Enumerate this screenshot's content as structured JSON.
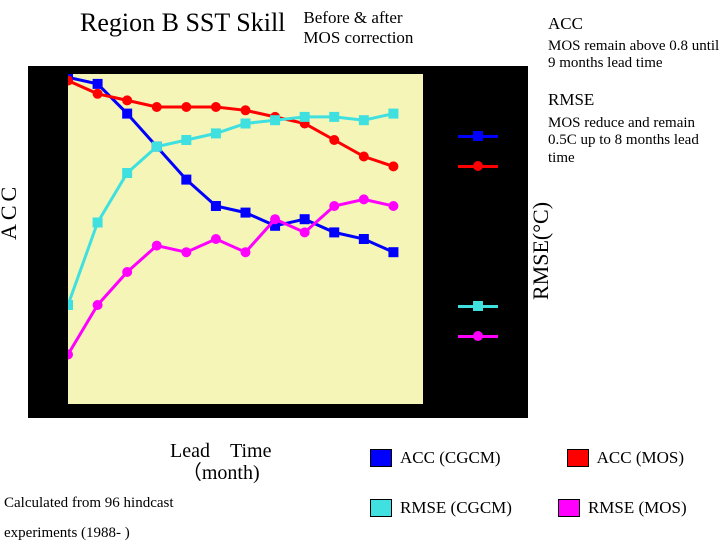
{
  "title": "Region B SST Skill",
  "subtitle": "Before & after\nMOS correction",
  "notes": {
    "acc_h": "ACC",
    "acc_body": "MOS  remain above 0.8 until 9 months lead time",
    "rmse_h": "RMSE",
    "rmse_body": "MOS reduce and remain 0.5C up to 8 months lead time"
  },
  "axes": {
    "ylabel_left": "ACC",
    "ylabel_right": "RMSE(°C)",
    "xlabel": "Lead　Time\n（month)"
  },
  "chart": {
    "type": "line",
    "background_outer": "#000000",
    "background_inner": "#f5f5b8",
    "inner_w": 355,
    "inner_h": 330,
    "xlim": [
      0,
      12
    ],
    "ylim": [
      0,
      1
    ],
    "series": [
      {
        "name": "ACC (CGCM)",
        "color": "#0000ff",
        "marker": "square",
        "values": [
          [
            0,
            0.99
          ],
          [
            1,
            0.97
          ],
          [
            2,
            0.88
          ],
          [
            3,
            0.78
          ],
          [
            4,
            0.68
          ],
          [
            5,
            0.6
          ],
          [
            6,
            0.58
          ],
          [
            7,
            0.54
          ],
          [
            8,
            0.56
          ],
          [
            9,
            0.52
          ],
          [
            10,
            0.5
          ],
          [
            11,
            0.46
          ]
        ]
      },
      {
        "name": "ACC (MOS)",
        "color": "#ff0000",
        "marker": "circle",
        "values": [
          [
            0,
            0.98
          ],
          [
            1,
            0.94
          ],
          [
            2,
            0.92
          ],
          [
            3,
            0.9
          ],
          [
            4,
            0.9
          ],
          [
            5,
            0.9
          ],
          [
            6,
            0.89
          ],
          [
            7,
            0.87
          ],
          [
            8,
            0.85
          ],
          [
            9,
            0.8
          ],
          [
            10,
            0.75
          ],
          [
            11,
            0.72
          ]
        ]
      },
      {
        "name": "RMSE (CGCM)",
        "color": "#40e0e0",
        "marker": "square",
        "values": [
          [
            0,
            0.3
          ],
          [
            1,
            0.55
          ],
          [
            2,
            0.7
          ],
          [
            3,
            0.78
          ],
          [
            4,
            0.8
          ],
          [
            5,
            0.82
          ],
          [
            6,
            0.85
          ],
          [
            7,
            0.86
          ],
          [
            8,
            0.87
          ],
          [
            9,
            0.87
          ],
          [
            10,
            0.86
          ],
          [
            11,
            0.88
          ]
        ]
      },
      {
        "name": "RMSE (MOS)",
        "color": "#ff00ff",
        "marker": "circle",
        "values": [
          [
            0,
            0.15
          ],
          [
            1,
            0.3
          ],
          [
            2,
            0.4
          ],
          [
            3,
            0.48
          ],
          [
            4,
            0.46
          ],
          [
            5,
            0.5
          ],
          [
            6,
            0.46
          ],
          [
            7,
            0.56
          ],
          [
            8,
            0.52
          ],
          [
            9,
            0.6
          ],
          [
            10,
            0.62
          ],
          [
            11,
            0.6
          ]
        ]
      }
    ],
    "line_width": 3,
    "marker_size": 10
  },
  "legend": {
    "items": [
      {
        "label": "ACC (CGCM)",
        "swatch": "#0000ff"
      },
      {
        "label": "ACC (MOS)",
        "swatch": "#ff0000"
      },
      {
        "label": "RMSE (CGCM)",
        "swatch": "#40e0e0"
      },
      {
        "label": "RMSE (MOS)",
        "swatch": "#ff00ff"
      }
    ]
  },
  "footnote1": "Calculated from 96 hindcast",
  "footnote2": "experiments (1988- )"
}
